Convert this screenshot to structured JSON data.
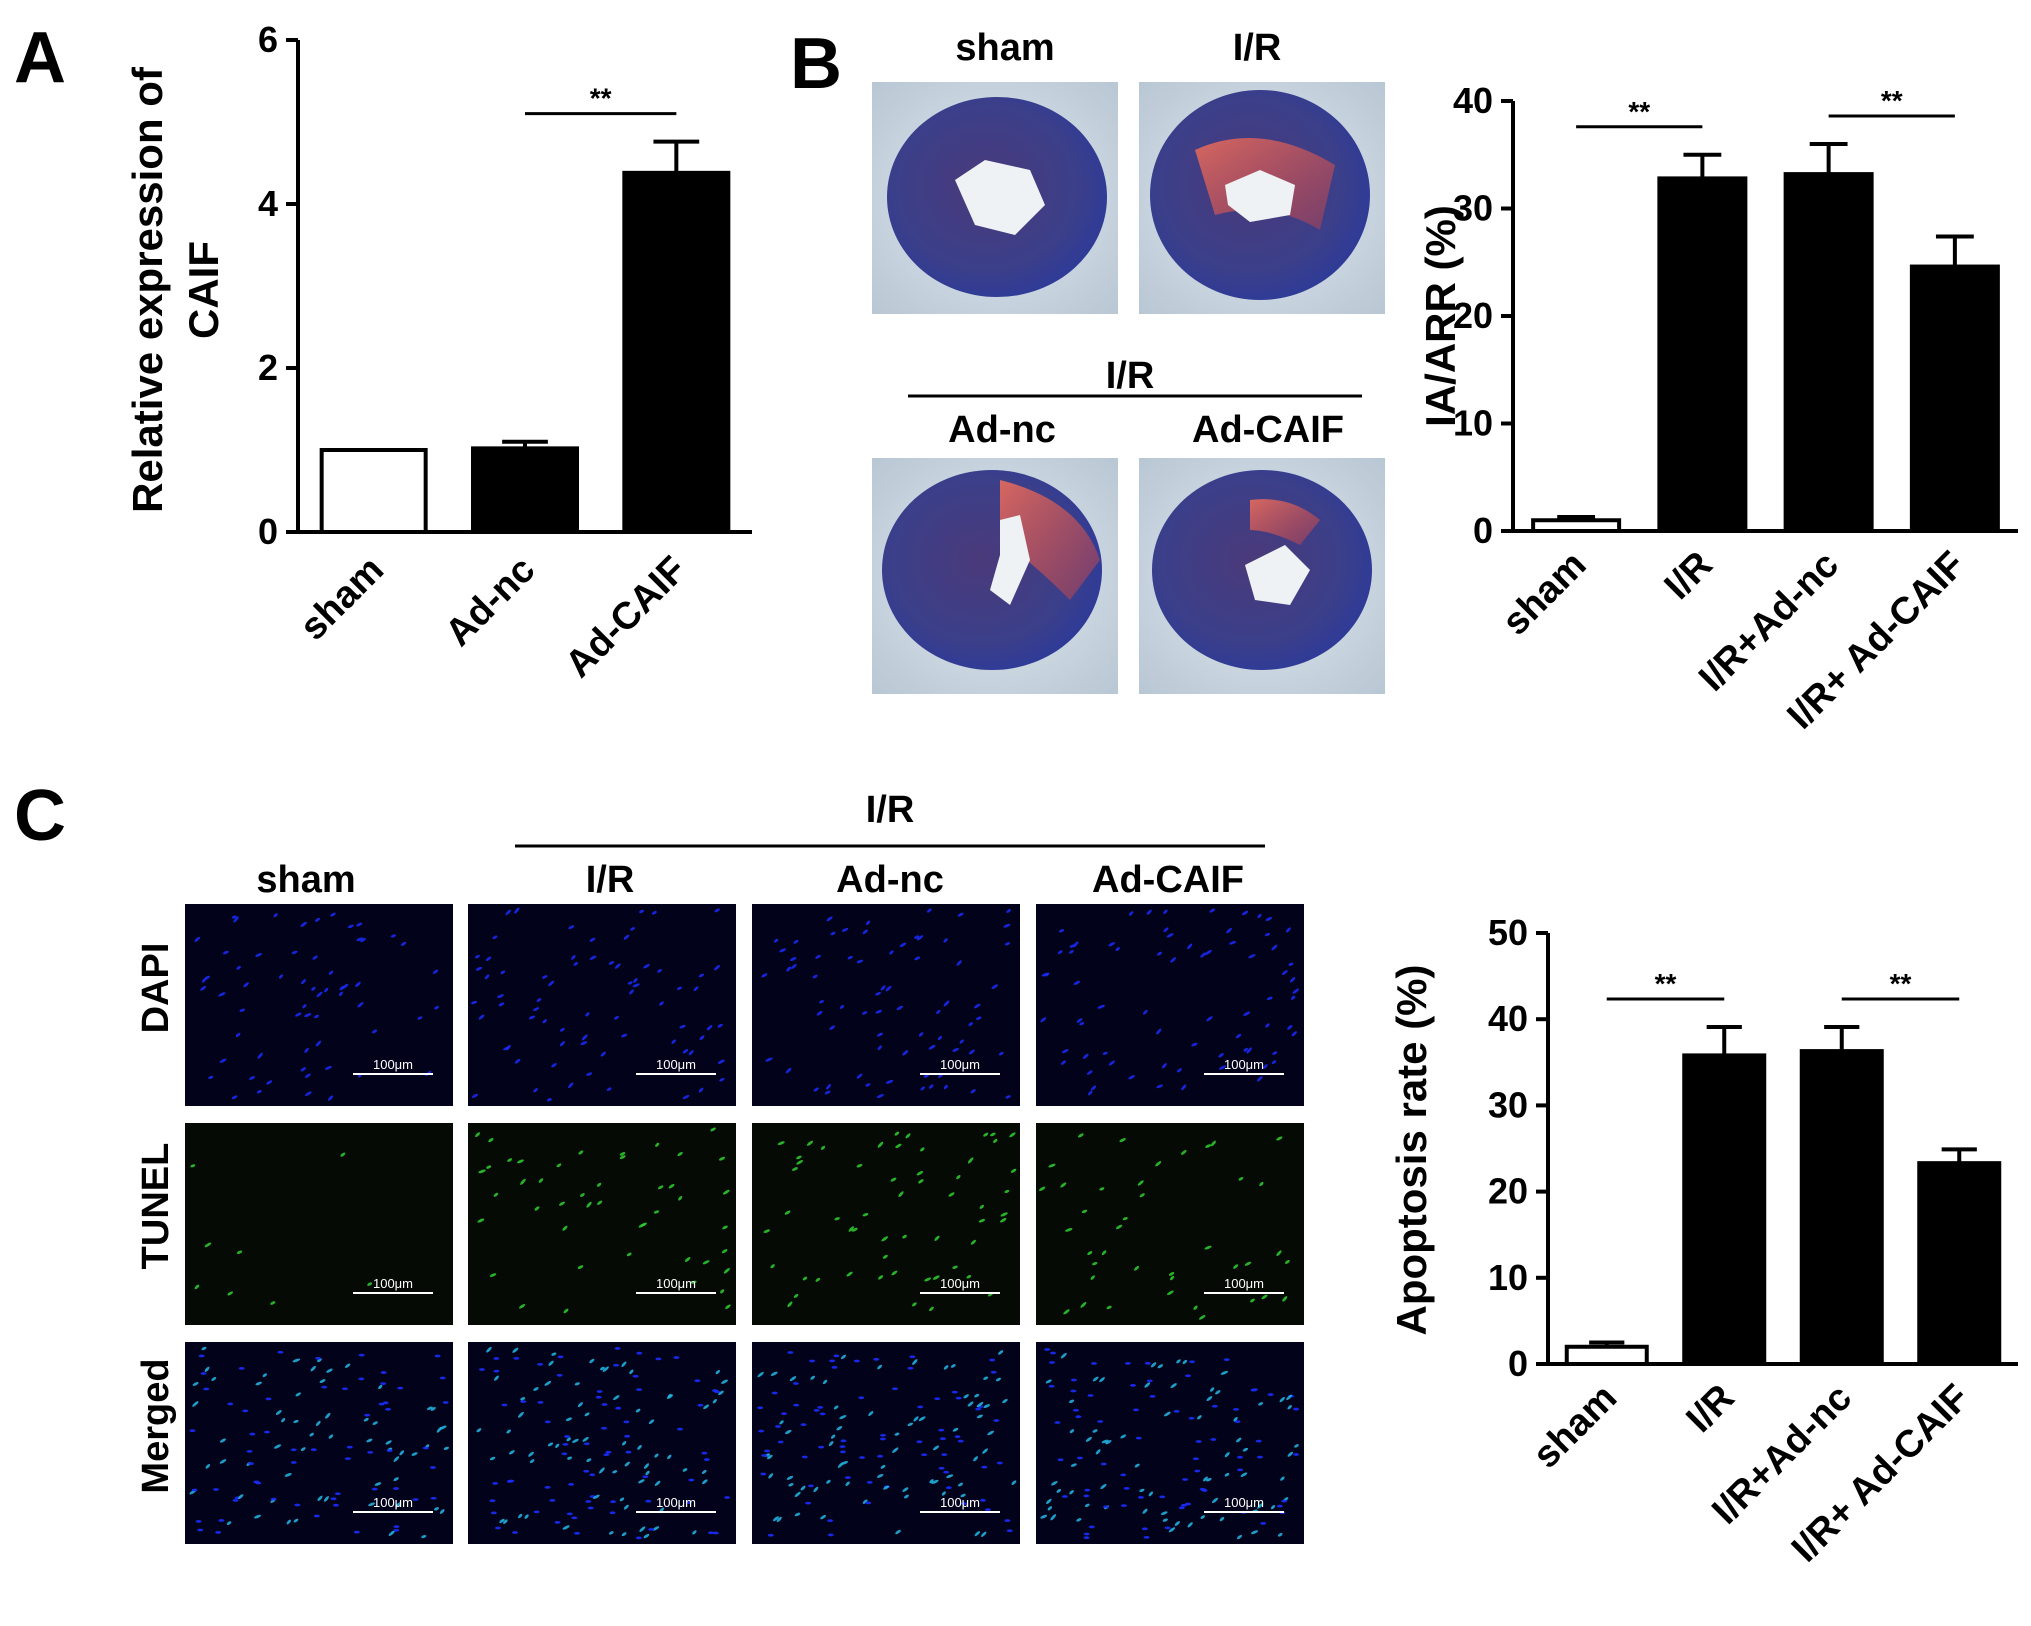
{
  "panels": {
    "A": {
      "letter": "A"
    },
    "B": {
      "letter": "B",
      "photo_labels": {
        "top_left": "sham",
        "top_right": "I/R",
        "group": "I/R",
        "bottom_left": "Ad-nc",
        "bottom_right": "Ad-CAIF"
      }
    },
    "C": {
      "letter": "C",
      "group_label": "I/R",
      "column_labels": [
        "sham",
        "I/R",
        "Ad-nc",
        "Ad-CAIF"
      ],
      "row_labels": [
        "DAPI",
        "TUNEL",
        "Merged"
      ],
      "scale_bar_label": "100μm"
    }
  },
  "colors": {
    "bar_fill": "#000000",
    "sham_fill": "#ffffff",
    "dapi": "#1a2cff",
    "tunel": "#2fd02f",
    "merged": "#22b8e8"
  },
  "chart_data": [
    {
      "id": "A",
      "type": "bar",
      "categories": [
        "sham",
        "Ad-nc",
        "Ad-CAIF"
      ],
      "values": [
        1.0,
        1.02,
        4.38
      ],
      "errors": [
        0.0,
        0.08,
        0.38
      ],
      "ylabel": [
        "Relative expression of",
        "CAIF"
      ],
      "ylim": [
        0,
        6
      ],
      "yticks": [
        0,
        2,
        4,
        6
      ],
      "significance": [
        {
          "from": 1,
          "to": 2,
          "label": "**"
        }
      ]
    },
    {
      "id": "B",
      "type": "bar",
      "categories": [
        "sham",
        "I/R",
        "I/R+Ad-nc",
        "I/R+ Ad-CAIF"
      ],
      "values": [
        1.0,
        32.8,
        33.2,
        24.6
      ],
      "errors": [
        0.3,
        2.2,
        2.8,
        2.8
      ],
      "ylabel": [
        "IA/ARR (%)"
      ],
      "ylim": [
        0,
        40
      ],
      "yticks": [
        0,
        10,
        20,
        30,
        40
      ],
      "significance": [
        {
          "from": 0,
          "to": 1,
          "label": "**"
        },
        {
          "from": 2,
          "to": 3,
          "label": "**"
        }
      ]
    },
    {
      "id": "C",
      "type": "bar",
      "categories": [
        "sham",
        "I/R",
        "I/R+Ad-nc",
        "I/R+ Ad-CAIF"
      ],
      "values": [
        2.0,
        35.8,
        36.3,
        23.3
      ],
      "errors": [
        0.5,
        3.3,
        2.8,
        1.6
      ],
      "ylabel": [
        "Apoptosis rate (%)"
      ],
      "ylim": [
        0,
        50
      ],
      "yticks": [
        0,
        10,
        20,
        30,
        40,
        50
      ],
      "significance": [
        {
          "from": 0,
          "to": 1,
          "label": "**"
        },
        {
          "from": 2,
          "to": 3,
          "label": "**"
        }
      ]
    }
  ]
}
